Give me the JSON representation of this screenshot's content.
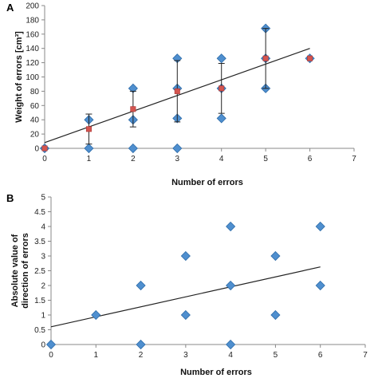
{
  "chart_data": [
    {
      "panel_label": "A",
      "type": "scatter",
      "xlabel": "Number of errors",
      "ylabel": "Weight of errors [cm³]",
      "xlim": [
        0,
        7
      ],
      "ylim": [
        0,
        200
      ],
      "xticks": [
        0,
        1,
        2,
        3,
        4,
        5,
        6,
        7
      ],
      "yticks": [
        0,
        20,
        40,
        60,
        80,
        100,
        120,
        140,
        160,
        180,
        200
      ],
      "grid": false,
      "series": [
        {
          "marker": "diamond",
          "color": "#4f8fcf",
          "points": [
            [
              0,
              0
            ],
            [
              1,
              0
            ],
            [
              1,
              40
            ],
            [
              2,
              0
            ],
            [
              2,
              40
            ],
            [
              2,
              84
            ],
            [
              3,
              0
            ],
            [
              3,
              42
            ],
            [
              3,
              84
            ],
            [
              3,
              126
            ],
            [
              4,
              42
            ],
            [
              4,
              84
            ],
            [
              4,
              126
            ],
            [
              5,
              84
            ],
            [
              5,
              126
            ],
            [
              5,
              168
            ],
            [
              6,
              126
            ]
          ]
        },
        {
          "marker": "square",
          "color": "#d4554f",
          "points": [
            [
              0,
              0
            ],
            [
              1,
              27
            ],
            [
              2,
              55
            ],
            [
              3,
              80
            ],
            [
              4,
              84
            ],
            [
              5,
              126
            ],
            [
              6,
              126
            ]
          ],
          "error": [
            0,
            21,
            25,
            43,
            35,
            42,
            0
          ]
        }
      ],
      "trendline": [
        [
          0,
          8
        ],
        [
          6,
          140
        ]
      ]
    },
    {
      "panel_label": "B",
      "type": "scatter",
      "xlabel": "Number of errors",
      "ylabel": "Absolute value of direction of errors",
      "xlim": [
        0,
        7
      ],
      "ylim": [
        0,
        5
      ],
      "xticks": [
        0,
        1,
        2,
        3,
        4,
        5,
        6,
        7
      ],
      "yticks": [
        0,
        0.5,
        1,
        1.5,
        2,
        2.5,
        3,
        3.5,
        4,
        4.5,
        5
      ],
      "grid": false,
      "series": [
        {
          "marker": "diamond",
          "color": "#4f8fcf",
          "points": [
            [
              0,
              0
            ],
            [
              1,
              1
            ],
            [
              2,
              0
            ],
            [
              2,
              2
            ],
            [
              3,
              1
            ],
            [
              3,
              3
            ],
            [
              4,
              0
            ],
            [
              4,
              2
            ],
            [
              4,
              4
            ],
            [
              5,
              1
            ],
            [
              5,
              3
            ],
            [
              6,
              2
            ],
            [
              6,
              4
            ]
          ]
        }
      ],
      "trendline": [
        [
          0,
          0.6
        ],
        [
          6,
          2.63
        ]
      ]
    }
  ]
}
